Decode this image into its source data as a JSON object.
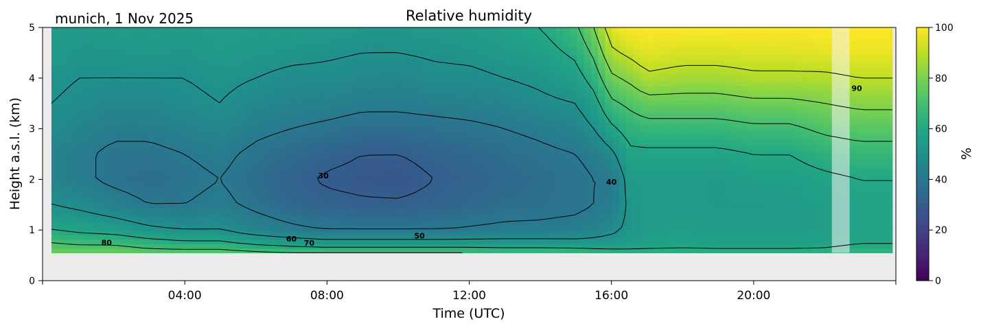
{
  "chart_data": {
    "type": "heatmap",
    "title": "Relative humidity",
    "location_label": "munich, 1 Nov 2025",
    "xlabel": "Time (UTC)",
    "ylabel": "Height a.s.l. (km)",
    "x_unit": "hours UTC",
    "xlim": [
      0,
      24
    ],
    "ylim": [
      0,
      5
    ],
    "x_ticks": [
      4,
      8,
      12,
      16,
      20
    ],
    "x_tick_labels": [
      "04:00",
      "08:00",
      "12:00",
      "16:00",
      "20:00"
    ],
    "y_ticks": [
      0,
      1,
      2,
      3,
      4,
      5
    ],
    "y_tick_labels": [
      "0",
      "1",
      "2",
      "3",
      "4",
      "5"
    ],
    "data_time_range": [
      0.25,
      23.9
    ],
    "lowest_valid_height_km": 0.55,
    "no_data_color": "#ebebeb",
    "missing_data_interval": [
      22.2,
      22.7
    ],
    "colorbar": {
      "label": "%",
      "range": [
        0,
        100
      ],
      "ticks": [
        0,
        20,
        40,
        60,
        80,
        100
      ],
      "tick_labels": [
        "0",
        "20",
        "40",
        "60",
        "80",
        "100"
      ],
      "colormap": "viridis"
    },
    "contour_levels": [
      30,
      40,
      50,
      60,
      70,
      80,
      90
    ],
    "contour_labels": [
      {
        "text": "80",
        "time": 1.8,
        "height": 0.7
      },
      {
        "text": "60",
        "time": 7.0,
        "height": 0.77
      },
      {
        "text": "70",
        "time": 7.5,
        "height": 0.69
      },
      {
        "text": "50",
        "time": 10.6,
        "height": 0.83
      },
      {
        "text": "30",
        "time": 7.9,
        "height": 2.02
      },
      {
        "text": "40",
        "time": 16.0,
        "height": 1.9
      },
      {
        "text": "90",
        "time": 22.9,
        "height": 3.75
      }
    ],
    "rh_time_grid": [
      0.25,
      1,
      2,
      3,
      4,
      5,
      6,
      7,
      8,
      9,
      10,
      11,
      12,
      13,
      14,
      15,
      15.5,
      16,
      16.5,
      17,
      18,
      19,
      20,
      21,
      22,
      23,
      23.9
    ],
    "rh_height_grid": [
      0.55,
      0.7,
      1.0,
      1.5,
      2.0,
      2.5,
      3.0,
      3.5,
      4.0,
      4.5,
      5.0
    ],
    "rh_values": [
      [
        78,
        72,
        60,
        50,
        45,
        45,
        48,
        50,
        52,
        54,
        55
      ],
      [
        78,
        70,
        58,
        48,
        42,
        42,
        45,
        48,
        50,
        52,
        54
      ],
      [
        78,
        70,
        56,
        44,
        38,
        38,
        42,
        46,
        50,
        52,
        55
      ],
      [
        75,
        66,
        52,
        40,
        36,
        38,
        42,
        46,
        50,
        53,
        55
      ],
      [
        75,
        64,
        50,
        40,
        38,
        40,
        44,
        48,
        50,
        52,
        54
      ],
      [
        75,
        64,
        50,
        42,
        40,
        42,
        46,
        50,
        52,
        54,
        56
      ],
      [
        72,
        60,
        45,
        38,
        36,
        38,
        42,
        46,
        50,
        53,
        55
      ],
      [
        70,
        58,
        42,
        34,
        32,
        35,
        40,
        45,
        48,
        52,
        55
      ],
      [
        70,
        56,
        40,
        32,
        29,
        32,
        38,
        44,
        48,
        51,
        54
      ],
      [
        70,
        56,
        40,
        31,
        28,
        30,
        36,
        42,
        47,
        50,
        53
      ],
      [
        70,
        56,
        40,
        31,
        27,
        30,
        36,
        42,
        46,
        50,
        53
      ],
      [
        70,
        56,
        40,
        32,
        30,
        32,
        37,
        43,
        48,
        51,
        54
      ],
      [
        70,
        56,
        41,
        34,
        32,
        34,
        38,
        44,
        48,
        52,
        55
      ],
      [
        68,
        56,
        42,
        36,
        34,
        36,
        40,
        45,
        50,
        54,
        57
      ],
      [
        68,
        56,
        42,
        37,
        36,
        38,
        42,
        48,
        52,
        56,
        60
      ],
      [
        68,
        55,
        43,
        38,
        38,
        40,
        45,
        50,
        56,
        62,
        68
      ],
      [
        66,
        55,
        45,
        40,
        40,
        42,
        50,
        56,
        64,
        72,
        80
      ],
      [
        65,
        55,
        48,
        42,
        40,
        48,
        58,
        68,
        78,
        88,
        96
      ],
      [
        64,
        56,
        52,
        52,
        54,
        58,
        64,
        72,
        82,
        92,
        100
      ],
      [
        64,
        57,
        55,
        55,
        55,
        58,
        66,
        76,
        88,
        96,
        100
      ],
      [
        64,
        58,
        56,
        55,
        55,
        58,
        66,
        76,
        86,
        94,
        100
      ],
      [
        64,
        57,
        55,
        54,
        54,
        58,
        66,
        76,
        86,
        94,
        100
      ],
      [
        64,
        57,
        55,
        54,
        56,
        60,
        68,
        78,
        88,
        95,
        100
      ],
      [
        64,
        57,
        55,
        55,
        56,
        60,
        68,
        78,
        88,
        95,
        100
      ],
      [
        64,
        58,
        56,
        56,
        58,
        64,
        72,
        80,
        88,
        96,
        100
      ],
      [
        66,
        60,
        58,
        58,
        60,
        66,
        74,
        82,
        90,
        97,
        100
      ],
      [
        66,
        60,
        58,
        58,
        60,
        66,
        74,
        82,
        90,
        97,
        100
      ]
    ]
  }
}
